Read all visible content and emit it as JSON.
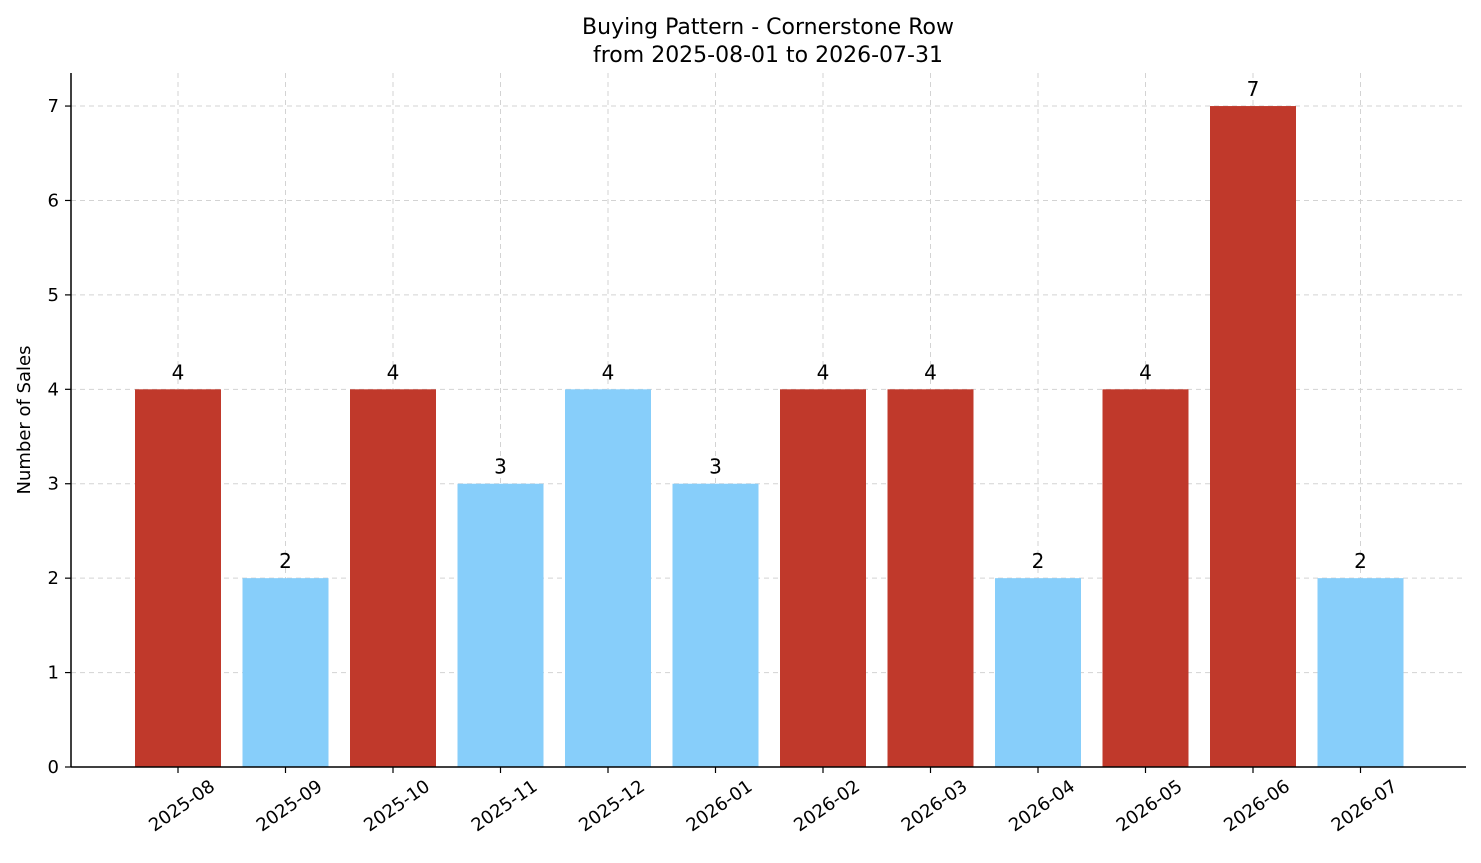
{
  "chart_data": {
    "type": "bar",
    "title": "Buying Pattern - Cornerstone Row",
    "subtitle": "from 2025-08-01 to 2026-07-31",
    "xlabel": "",
    "ylabel": "Number of Sales",
    "ylim": [
      0,
      7.35
    ],
    "yticks": [
      0,
      1,
      2,
      3,
      4,
      5,
      6,
      7
    ],
    "grid": true,
    "categories": [
      "2025-08",
      "2025-09",
      "2025-10",
      "2025-11",
      "2025-12",
      "2026-01",
      "2026-02",
      "2026-03",
      "2026-04",
      "2026-05",
      "2026-06",
      "2026-07"
    ],
    "values": [
      4,
      2,
      4,
      3,
      4,
      3,
      4,
      4,
      2,
      4,
      7,
      2
    ],
    "bar_colors": [
      "#c0392b",
      "#87cefa",
      "#c0392b",
      "#87cefa",
      "#87cefa",
      "#87cefa",
      "#c0392b",
      "#c0392b",
      "#87cefa",
      "#c0392b",
      "#c0392b",
      "#87cefa"
    ]
  }
}
